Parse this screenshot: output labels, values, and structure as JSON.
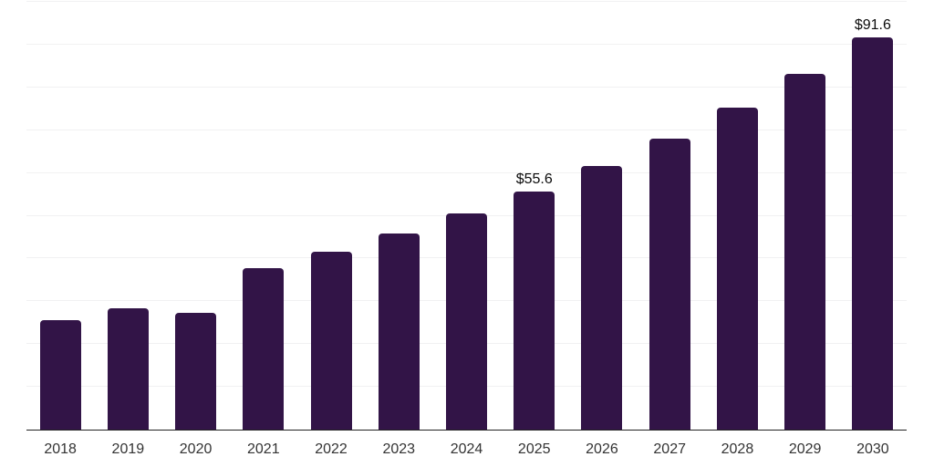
{
  "chart_data": {
    "type": "bar",
    "categories": [
      "2018",
      "2019",
      "2020",
      "2021",
      "2022",
      "2023",
      "2024",
      "2025",
      "2026",
      "2027",
      "2028",
      "2029",
      "2030"
    ],
    "values": [
      25.5,
      28.4,
      27.2,
      37.7,
      41.6,
      45.8,
      50.5,
      55.6,
      61.6,
      68.0,
      75.3,
      83.2,
      91.6
    ],
    "data_labels": [
      "",
      "",
      "",
      "",
      "",
      "",
      "",
      "$55.6",
      "",
      "",
      "",
      "",
      "$91.6"
    ],
    "ylim": [
      0,
      100
    ],
    "y_gridline_interval": 10,
    "grid": true,
    "legend_position": "none",
    "bar_color": "#321447",
    "gridline_color": "#f1f1f2",
    "axis_line_color": "#222222",
    "tick_label_color": "#333333",
    "data_label_color": "#0b0b0b"
  }
}
